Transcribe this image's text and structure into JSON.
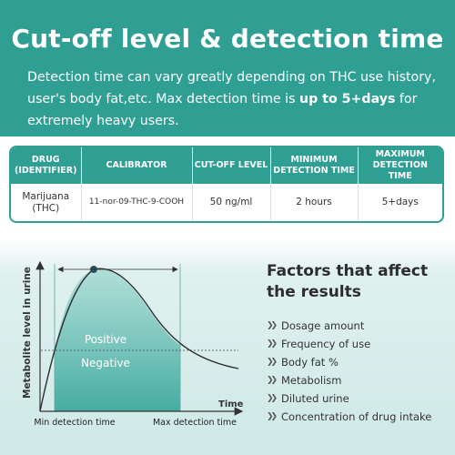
{
  "header": {
    "title": "Cut-off level & detection time",
    "desc_plain": "Detection time can vary greatly depending on THC use history, user's body fat,etc. Max detection time is ",
    "desc_bold": "up to 5+days",
    "desc_end": " for extremely heavy users."
  },
  "table": {
    "headers": [
      "DRUG (IDENTIFIER)",
      "CALIBRATOR",
      "CUT-OFF LEVEL",
      "MINIMUM DETECTION TIME",
      "MAXIMUM DETECTION TIME"
    ],
    "row": [
      "Marijuana (THC)",
      "11-nor-09-THC-9-COOH",
      "50 ng/ml",
      "2 hours",
      "5+days"
    ]
  },
  "diagram": {
    "y_label": "Metabolite level in urine",
    "x_label": "Time",
    "positive_label": "Positive",
    "negative_label": "Negative",
    "min_label": "Min detection time",
    "max_label": "Max detection time"
  },
  "factors": {
    "title": "Factors that affect the results",
    "items": [
      "Dosage amount",
      "Frequency of use",
      "Body fat %",
      "Metabolism",
      "Diluted urine",
      "Concentration of drug intake"
    ]
  },
  "colors": {
    "accent": "#2f9e93",
    "fill": "#8ccfc7"
  }
}
